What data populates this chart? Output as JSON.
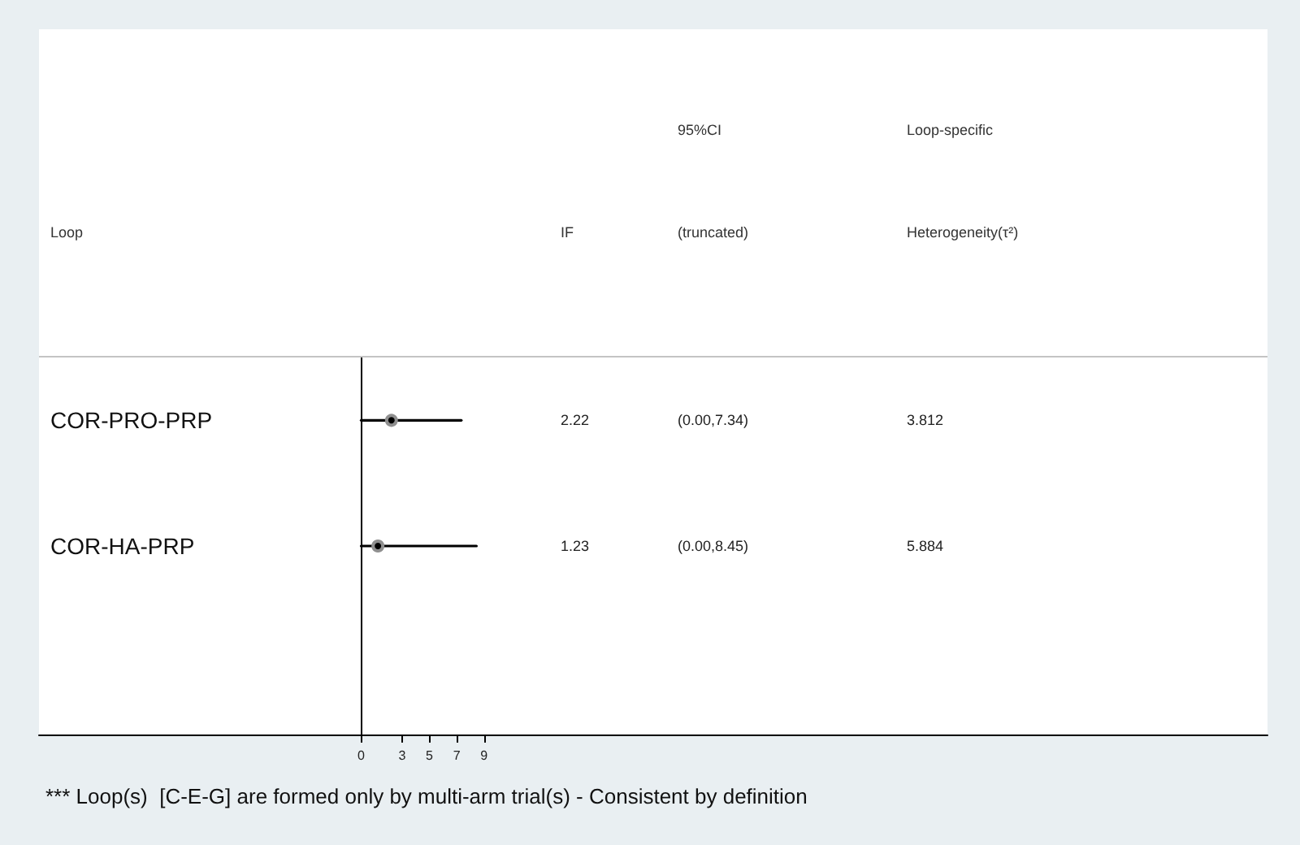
{
  "chart_data": {
    "type": "scatter",
    "orientation": "horizontal",
    "categories": [
      "COR-PRO-PRP",
      "COR-HA-PRP",
      null
    ],
    "values": [
      2.22,
      1.23,
      null
    ],
    "errors": [
      [
        0,
        7.34
      ],
      [
        0,
        8.45
      ],
      null
    ],
    "color": "#000000",
    "marker": "circle",
    "xlim": [
      -23.6,
      66.4
    ],
    "xticks": [
      0,
      3,
      5,
      7,
      9
    ],
    "ref_lines": [
      {
        "axis": "x",
        "value": 0,
        "color": "#000000"
      }
    ],
    "annotations": [
      "95%CI",
      "Loop-specific",
      "Loop",
      "IF",
      "(truncated)",
      "Heterogeneity(τ²)",
      "2.22",
      "(0.00,7.34)",
      "3.812",
      "1.23",
      "(0.00,8.45)",
      "5.884",
      "*** Loop(s)  [C-E-G] are formed only by multi-arm trial(s) - Consistent by definition"
    ]
  }
}
